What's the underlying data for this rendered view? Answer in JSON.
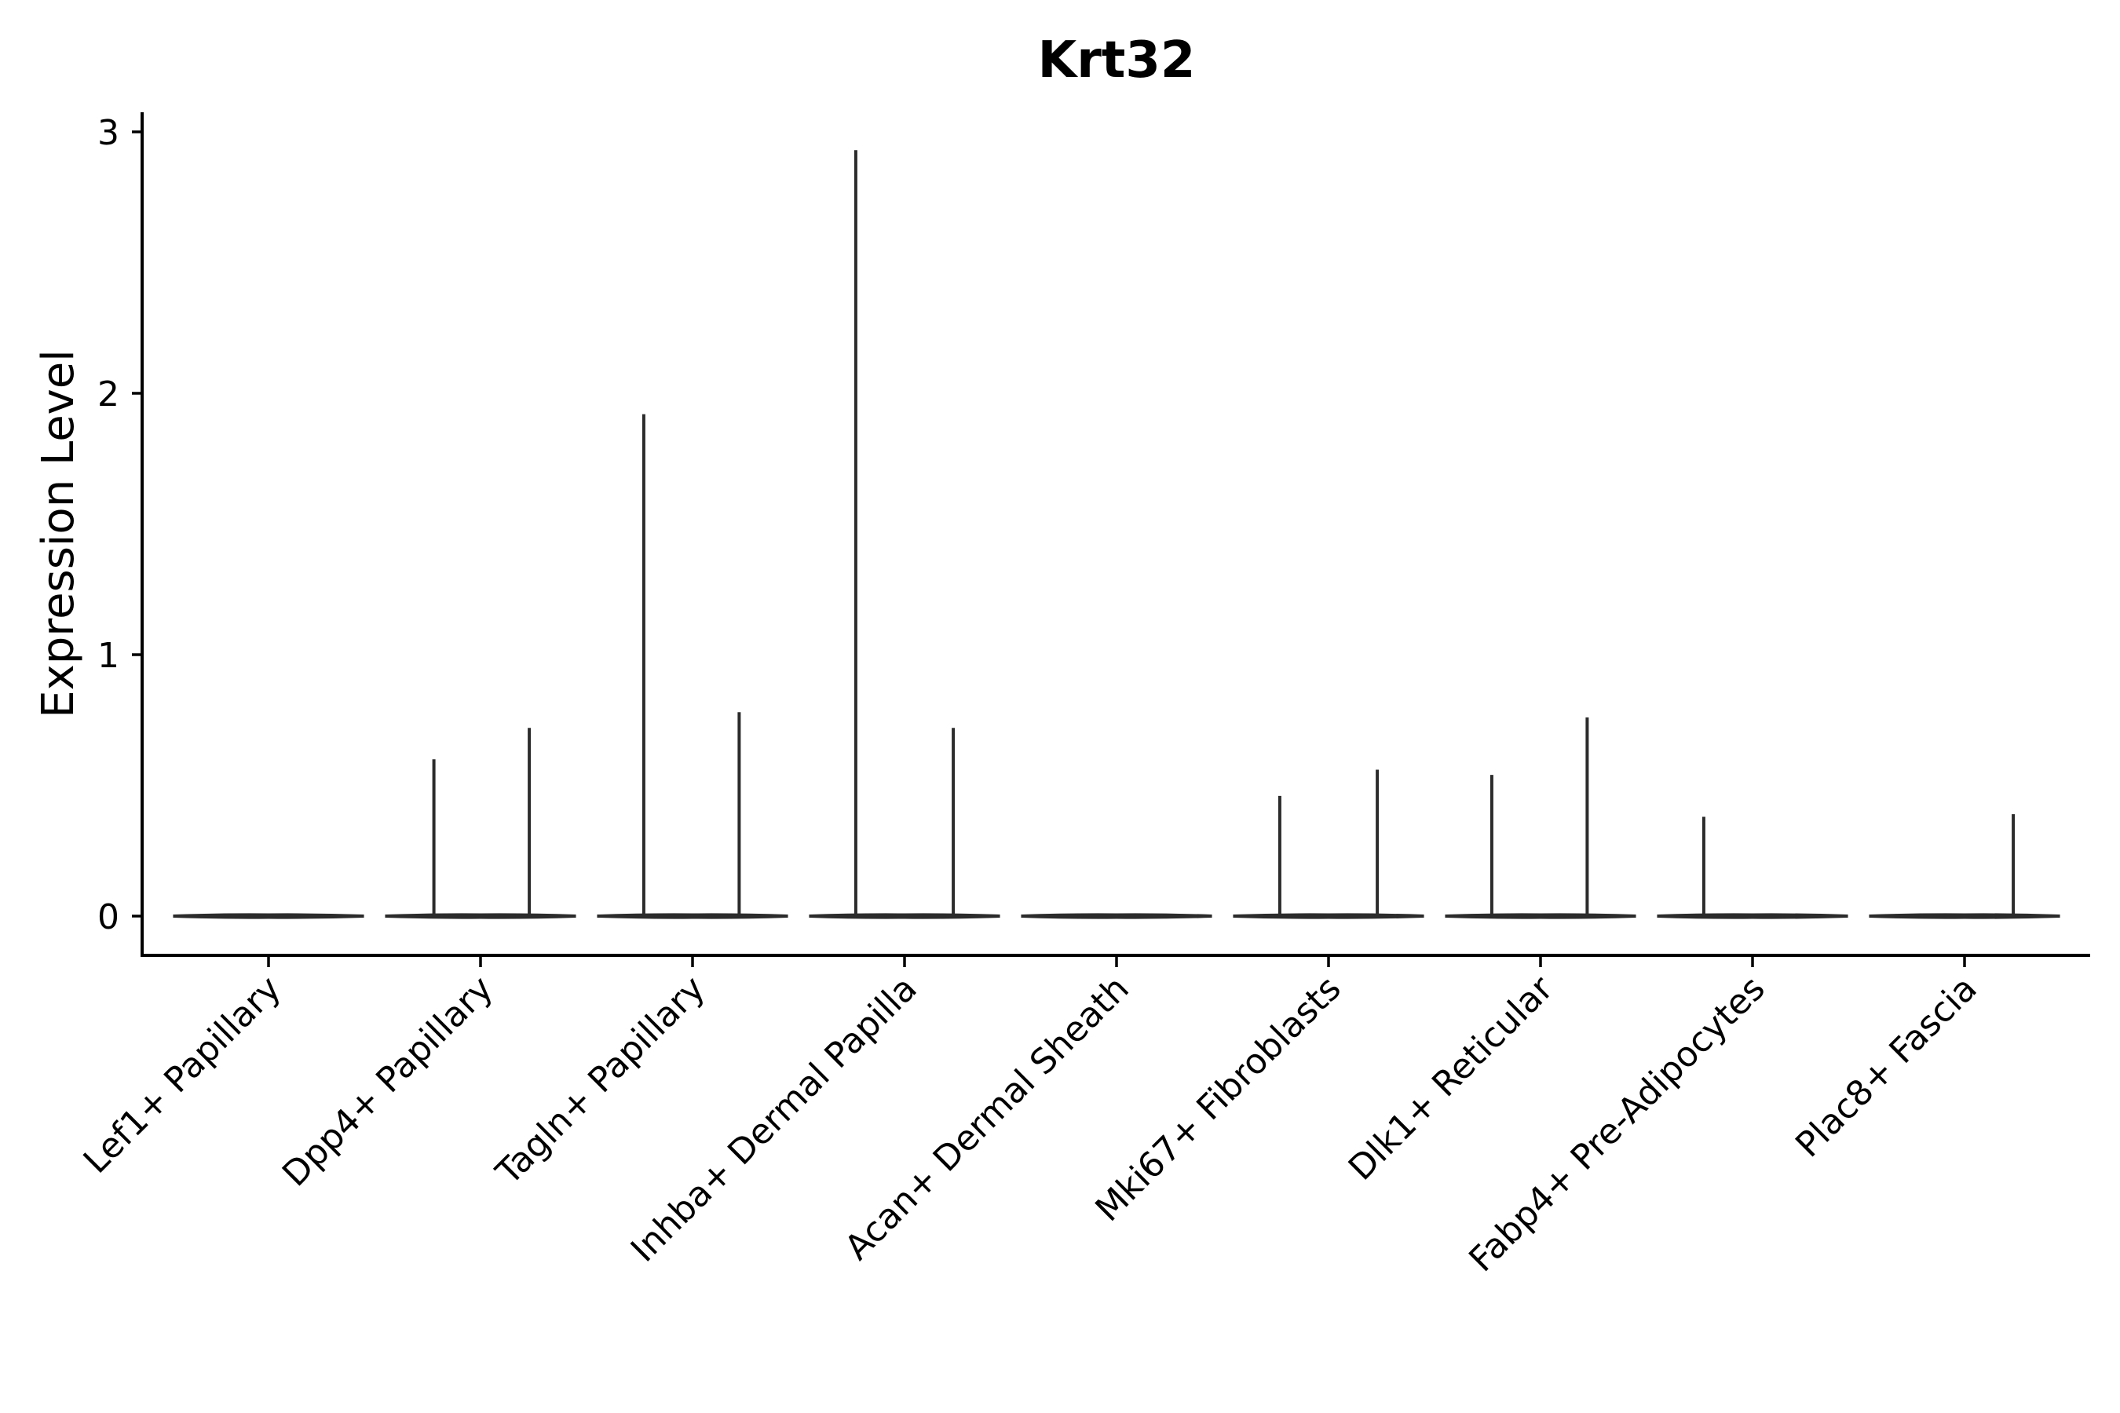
{
  "chart_data": {
    "type": "violin",
    "title": "Krt32",
    "xlabel": "",
    "ylabel": "Expression Level",
    "ylim": [
      -0.15,
      3.08
    ],
    "yticks": [
      0,
      1,
      2,
      3
    ],
    "grid": false,
    "legend": "none",
    "categories": [
      "Lef1+ Papillary",
      "Dpp4+ Papillary",
      "Tagln+ Papillary",
      "Inhba+ Dermal Papilla",
      "Acan+ Dermal Sheath",
      "Mki67+ Fibroblasts",
      "Dlk1+ Reticular",
      "Fabp4+ Pre-Adipocytes",
      "Plac8+ Fascia"
    ],
    "spikes": [
      [],
      [
        {
          "offset": -0.22,
          "value": 0.6
        },
        {
          "offset": 0.23,
          "value": 0.72
        }
      ],
      [
        {
          "offset": -0.23,
          "value": 1.92
        },
        {
          "offset": 0.22,
          "value": 0.78
        }
      ],
      [
        {
          "offset": -0.23,
          "value": 2.93
        },
        {
          "offset": 0.23,
          "value": 0.72
        }
      ],
      [],
      [
        {
          "offset": -0.23,
          "value": 0.46
        },
        {
          "offset": 0.23,
          "value": 0.56
        }
      ],
      [
        {
          "offset": -0.23,
          "value": 0.54
        },
        {
          "offset": 0.22,
          "value": 0.76
        }
      ],
      [
        {
          "offset": -0.23,
          "value": 0.38
        }
      ],
      [
        {
          "offset": 0.23,
          "value": 0.39
        }
      ]
    ]
  }
}
